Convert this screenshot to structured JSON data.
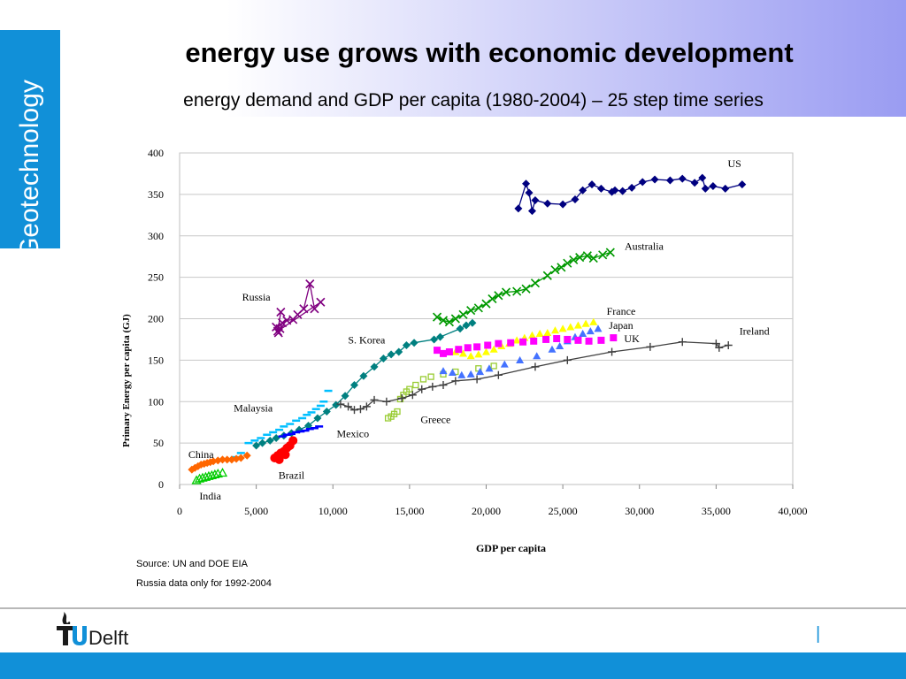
{
  "slide": {
    "side_label": "Geotechnology",
    "title": "energy use grows with economic development",
    "subtitle": "energy demand and GDP per capita (1980-2004) – 25 step time series",
    "source_line1": "Source: UN and DOE EIA",
    "source_line2": "Russia data only for 1992-2004",
    "footer_separator": "|",
    "logo": {
      "icon": "tudelft-flame-logo",
      "text": "TUDelft"
    }
  },
  "chart_data": {
    "type": "scatter",
    "title": "",
    "xlabel": "GDP per capita",
    "ylabel": "Primary Energy per capita (GJ)",
    "xlim": [
      0,
      40000
    ],
    "ylim": [
      0,
      400
    ],
    "x_ticks": [
      0,
      5000,
      10000,
      15000,
      20000,
      25000,
      30000,
      35000,
      40000
    ],
    "x_tick_labels": [
      "0",
      "5,000",
      "10,000",
      "15,000",
      "20,000",
      "25,000",
      "30,000",
      "35,000",
      "40,000"
    ],
    "y_ticks": [
      0,
      50,
      100,
      150,
      200,
      250,
      300,
      350,
      400
    ],
    "y_tick_labels": [
      "0",
      "50",
      "100",
      "150",
      "200",
      "250",
      "300",
      "350",
      "400"
    ],
    "grid": "horizontal",
    "series": [
      {
        "name": "US",
        "color": "#000080",
        "marker": "diamond",
        "line": true,
        "x": [
          22100,
          22600,
          22800,
          23000,
          23200,
          24000,
          25000,
          25800,
          26300,
          26900,
          27500,
          28200,
          28400,
          28900,
          29500,
          30200,
          31000,
          32000,
          32800,
          33600,
          34100,
          34300,
          34800,
          35600,
          36700
        ],
        "y": [
          333,
          363,
          352,
          330,
          343,
          339,
          338,
          344,
          355,
          362,
          357,
          353,
          355,
          354,
          358,
          365,
          368,
          367,
          369,
          364,
          370,
          357,
          360,
          357,
          362
        ]
      },
      {
        "name": "Australia",
        "color": "#009900",
        "marker": "x",
        "line": true,
        "x": [
          16800,
          17200,
          17600,
          18000,
          18500,
          19000,
          19500,
          20000,
          20400,
          20800,
          21300,
          22000,
          22600,
          23200,
          24000,
          24500,
          24900,
          25300,
          25700,
          26100,
          26600,
          27000,
          27600,
          28100
        ],
        "y": [
          202,
          198,
          196,
          200,
          205,
          210,
          213,
          218,
          224,
          228,
          232,
          233,
          236,
          243,
          252,
          259,
          262,
          267,
          271,
          274,
          276,
          273,
          277,
          280
        ]
      },
      {
        "name": "Russia",
        "color": "#800080",
        "marker": "x",
        "line": true,
        "x": [
          6300,
          6450,
          6550,
          6700,
          7000,
          7400,
          7700,
          8100,
          8500,
          8800,
          9200,
          6400,
          6600
        ],
        "y": [
          190,
          183,
          188,
          195,
          198,
          199,
          205,
          212,
          242,
          212,
          220,
          185,
          208
        ]
      },
      {
        "name": "S. Korea",
        "color": "#008080",
        "marker": "diamond",
        "line": true,
        "x": [
          5000,
          5400,
          5900,
          6300,
          6800,
          7300,
          7800,
          8400,
          9000,
          9600,
          10200,
          10800,
          11400,
          12000,
          12700,
          13300,
          13800,
          14300,
          14800,
          15300,
          16600,
          17000,
          18300,
          18700,
          19100
        ],
        "y": [
          47,
          50,
          53,
          56,
          59,
          62,
          66,
          71,
          80,
          88,
          96,
          107,
          120,
          131,
          142,
          152,
          157,
          160,
          168,
          171,
          175,
          178,
          188,
          192,
          195
        ]
      },
      {
        "name": "Malaysia",
        "color": "#00bfff",
        "marker": "dash",
        "line": false,
        "x": [
          4500,
          4900,
          5300,
          5700,
          6100,
          6500,
          6800,
          7200,
          7600,
          8000,
          8300,
          8600,
          8900,
          9200,
          9400,
          9700,
          3600,
          4000
        ],
        "y": [
          50,
          53,
          56,
          60,
          63,
          66,
          70,
          73,
          77,
          80,
          84,
          87,
          91,
          95,
          100,
          113,
          33,
          38
        ]
      },
      {
        "name": "Mexico",
        "color": "#0000ff",
        "marker": "dash",
        "line": false,
        "x": [
          6700,
          7000,
          7300,
          7600,
          7900,
          8200,
          8500,
          8800,
          9100
        ],
        "y": [
          58,
          60,
          61,
          63,
          64,
          65,
          67,
          68,
          70
        ]
      },
      {
        "name": "Brazil",
        "color": "#ff0000",
        "marker": "circle",
        "line": false,
        "x": [
          6200,
          6400,
          6600,
          6800,
          7000,
          7200,
          7400,
          6500,
          6900
        ],
        "y": [
          32,
          35,
          38,
          40,
          44,
          47,
          53,
          30,
          36
        ]
      },
      {
        "name": "China",
        "color": "#ff6600",
        "marker": "diamond",
        "line": false,
        "x": [
          800,
          1000,
          1200,
          1400,
          1600,
          1800,
          2000,
          2200,
          2500,
          2800,
          3100,
          3400,
          3700,
          4000,
          4400
        ],
        "y": [
          18,
          20,
          22,
          24,
          25,
          26,
          27,
          28,
          29,
          30,
          30,
          30,
          31,
          32,
          35
        ]
      },
      {
        "name": "India",
        "color": "#00cc00",
        "marker": "triangle-open",
        "line": false,
        "x": [
          1100,
          1300,
          1500,
          1700,
          1900,
          2100,
          2300,
          2500,
          2800
        ],
        "y": [
          5,
          7,
          8,
          9,
          10,
          11,
          12,
          13,
          14
        ]
      },
      {
        "name": "Greece",
        "color": "#99cc33",
        "marker": "square-open",
        "line": false,
        "x": [
          13600,
          13800,
          14000,
          14200,
          14400,
          14600,
          14800,
          15000,
          15400,
          15900,
          16400,
          17200,
          18000,
          19500,
          20500
        ],
        "y": [
          80,
          82,
          85,
          88,
          103,
          108,
          112,
          115,
          120,
          127,
          130,
          133,
          136,
          140,
          143
        ]
      },
      {
        "name": "Ireland",
        "color": "#404040",
        "marker": "plus",
        "line": true,
        "x": [
          10500,
          11000,
          11400,
          11800,
          12200,
          12700,
          13500,
          14500,
          15200,
          15800,
          16500,
          17200,
          18000,
          19400,
          20800,
          23200,
          25300,
          28200,
          30700,
          32800,
          35000,
          35200,
          35800
        ],
        "y": [
          97,
          94,
          90,
          91,
          94,
          102,
          100,
          104,
          108,
          115,
          118,
          120,
          125,
          127,
          132,
          142,
          150,
          160,
          166,
          172,
          170,
          165,
          168
        ]
      },
      {
        "name": "France",
        "color": "#ffff00",
        "marker": "triangle",
        "line": false,
        "x": [
          18000,
          18500,
          19000,
          19500,
          20000,
          20500,
          21000,
          21500,
          22000,
          22500,
          23000,
          23500,
          24000,
          24500,
          25000,
          25500,
          26000,
          26500,
          27000
        ],
        "y": [
          160,
          158,
          155,
          157,
          160,
          163,
          167,
          170,
          174,
          177,
          180,
          182,
          183,
          186,
          188,
          190,
          192,
          194,
          196
        ]
      },
      {
        "name": "Japan",
        "color": "#4472ff",
        "marker": "triangle",
        "line": false,
        "x": [
          17200,
          17800,
          18400,
          19000,
          19600,
          20200,
          21200,
          22200,
          23300,
          24300,
          24800,
          25300,
          25800,
          26300,
          26800,
          27300
        ],
        "y": [
          137,
          135,
          132,
          133,
          136,
          140,
          145,
          150,
          155,
          163,
          167,
          173,
          178,
          182,
          185,
          188
        ]
      },
      {
        "name": "UK",
        "color": "#ff00ff",
        "marker": "square",
        "line": false,
        "x": [
          16800,
          17200,
          17600,
          18200,
          18800,
          19400,
          20100,
          20800,
          21600,
          22400,
          23100,
          23900,
          24600,
          25300,
          26000,
          26700,
          27500,
          28300
        ],
        "y": [
          162,
          158,
          160,
          163,
          165,
          166,
          168,
          170,
          171,
          172,
          173,
          175,
          176,
          175,
          174,
          173,
          174,
          177
        ]
      }
    ],
    "annotations": [
      {
        "text": "US",
        "x": 36200,
        "y": 383
      },
      {
        "text": "Australia",
        "x": 30300,
        "y": 283
      },
      {
        "text": "Russia",
        "x": 5000,
        "y": 222
      },
      {
        "text": "France",
        "x": 28800,
        "y": 205
      },
      {
        "text": "Japan",
        "x": 28800,
        "y": 188
      },
      {
        "text": "UK",
        "x": 29500,
        "y": 172
      },
      {
        "text": "Ireland",
        "x": 37500,
        "y": 181
      },
      {
        "text": "S. Korea",
        "x": 12200,
        "y": 170
      },
      {
        "text": "Malaysia",
        "x": 4800,
        "y": 88
      },
      {
        "text": "Greece",
        "x": 16700,
        "y": 74
      },
      {
        "text": "Mexico",
        "x": 11300,
        "y": 57
      },
      {
        "text": "China",
        "x": 1400,
        "y": 32
      },
      {
        "text": "Brazil",
        "x": 7300,
        "y": 7
      },
      {
        "text": "India",
        "x": 2000,
        "y": -18
      }
    ]
  }
}
